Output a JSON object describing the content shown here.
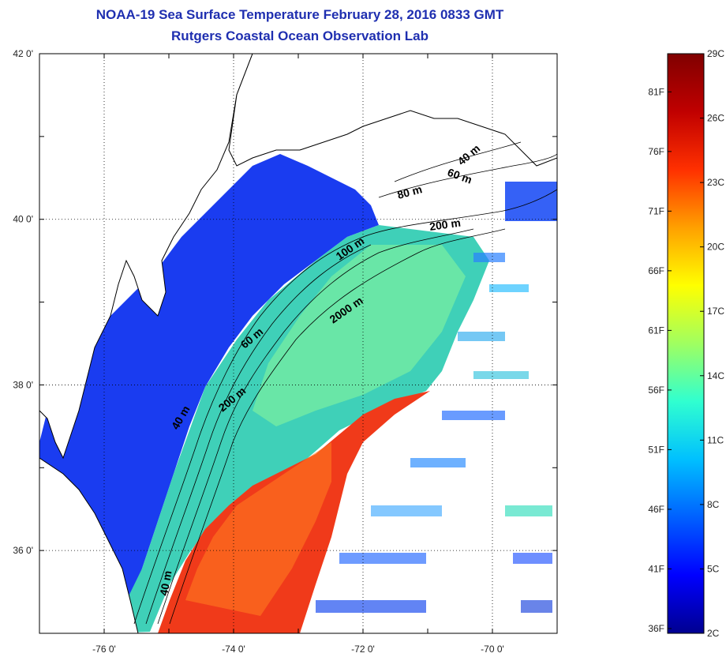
{
  "header": {
    "title": "NOAA-19 Sea Surface Temperature February 28, 2016 0833 GMT",
    "subtitle": "Rutgers Coastal Ocean Observation Lab"
  },
  "map": {
    "lat_ticks": [
      {
        "value": 42,
        "label": "42 0'"
      },
      {
        "value": 40,
        "label": "40 0'"
      },
      {
        "value": 38,
        "label": "38 0'"
      },
      {
        "value": 36,
        "label": "36 0'"
      }
    ],
    "lon_ticks": [
      {
        "value": -76,
        "label": "-76 0'"
      },
      {
        "value": -74,
        "label": "-74 0'"
      },
      {
        "value": -72,
        "label": "-72 0'"
      },
      {
        "value": -70,
        "label": "-70 0'"
      }
    ],
    "depth_labels": [
      "40 m",
      "60 m",
      "80 m",
      "200 m",
      "100 m",
      "2000 m",
      "60 m",
      "200 m",
      "40 m",
      "40 m"
    ]
  },
  "colorbar": {
    "fahrenheit_labels": [
      "81F",
      "76F",
      "71F",
      "66F",
      "61F",
      "56F",
      "51F",
      "46F",
      "41F",
      "36F"
    ],
    "celsius_labels": [
      "29C",
      "26C",
      "23C",
      "20C",
      "17C",
      "14C",
      "11C",
      "8C",
      "5C",
      "2C"
    ],
    "colors": [
      "#000090",
      "#0000ff",
      "#0060ff",
      "#00c0ff",
      "#30ffd0",
      "#a0ff60",
      "#ffff00",
      "#ffa000",
      "#ff3000",
      "#c00000",
      "#800000"
    ]
  }
}
